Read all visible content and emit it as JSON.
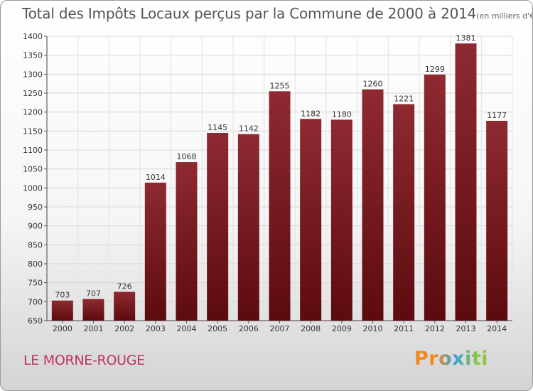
{
  "title": "Total des Impôts Locaux perçus par la Commune de 2000 à 2014",
  "subtitle": "(en milliers d'€)",
  "commune": "LE MORNE-ROUGE",
  "logo": "Proxiti",
  "colors": {
    "bar": "#7a1d22",
    "title": "#555555",
    "commune": "#c0306a"
  },
  "chart_data": {
    "type": "bar",
    "title": "Total des Impôts Locaux perçus par la Commune de 2000 à 2014",
    "subtitle": "(en milliers d'€)",
    "xlabel": "",
    "ylabel": "",
    "ylim": [
      650,
      1400
    ],
    "yticks": [
      650,
      700,
      750,
      800,
      850,
      900,
      950,
      1000,
      1050,
      1100,
      1150,
      1200,
      1250,
      1300,
      1350,
      1400
    ],
    "grid": true,
    "categories": [
      "2000",
      "2001",
      "2002",
      "2003",
      "2004",
      "2005",
      "2006",
      "2007",
      "2008",
      "2009",
      "2010",
      "2011",
      "2012",
      "2013",
      "2014"
    ],
    "values": [
      703,
      707,
      726,
      1014,
      1068,
      1145,
      1142,
      1255,
      1182,
      1180,
      1260,
      1221,
      1299,
      1381,
      1177
    ]
  }
}
